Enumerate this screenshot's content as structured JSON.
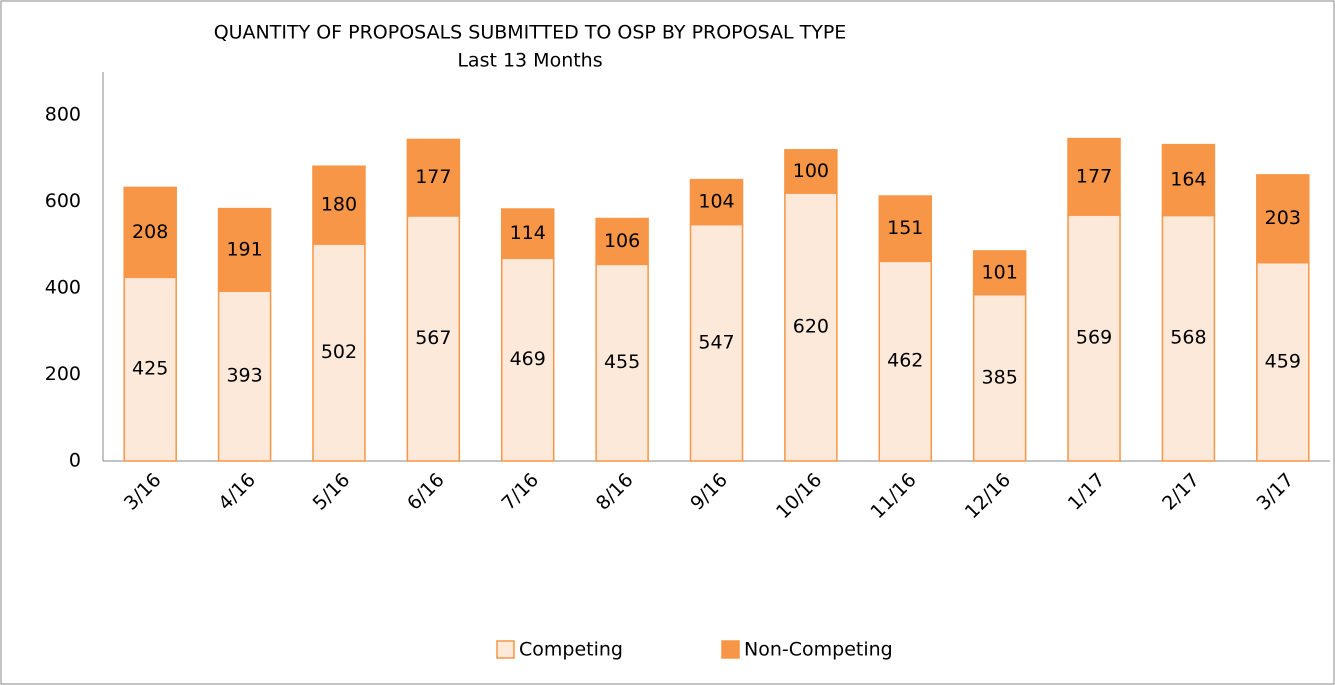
{
  "chart_data": {
    "type": "bar",
    "stacked": true,
    "title": "QUANTITY OF PROPOSALS SUBMITTED TO OSP BY PROPOSAL TYPE",
    "subtitle": "Last 13 Months",
    "categories": [
      "3/16",
      "4/16",
      "5/16",
      "6/16",
      "7/16",
      "8/16",
      "9/16",
      "10/16",
      "11/16",
      "12/16",
      "1/17",
      "2/17",
      "3/17"
    ],
    "series": [
      {
        "name": "Competing",
        "color": "#fde9d9",
        "edge": "#f79646",
        "values": [
          425,
          393,
          502,
          567,
          469,
          455,
          547,
          620,
          462,
          385,
          569,
          568,
          459
        ]
      },
      {
        "name": "Non-Competing",
        "color": "#f79646",
        "edge": "#f79646",
        "values": [
          208,
          191,
          180,
          177,
          114,
          106,
          104,
          100,
          151,
          101,
          177,
          164,
          203
        ]
      }
    ],
    "ylim": [
      0,
      900
    ],
    "yticks": [
      0,
      200,
      400,
      600,
      800
    ],
    "grid": false,
    "legend": "bottom"
  }
}
